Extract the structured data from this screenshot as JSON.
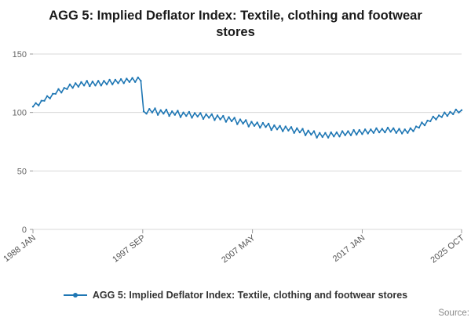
{
  "title": "AGG 5: Implied Deflator Index: Textile, clothing and footwear stores",
  "legend": {
    "label": "AGG 5: Implied Deflator Index: Textile, clothing and footwear stores"
  },
  "source_label": "Source:",
  "colors": {
    "line": "#1f77b4",
    "grid": "#d9d9d9",
    "tick": "#999999",
    "axis_text": "#555555",
    "y_text": "#666666"
  },
  "chart_data": {
    "type": "line",
    "title": "AGG 5: Implied Deflator Index: Textile, clothing and footwear stores",
    "xlabel": "",
    "ylabel": "",
    "ylim": [
      0,
      150
    ],
    "xlim": [
      1988.0,
      2025.75
    ],
    "grid": true,
    "legend_position": "bottom",
    "x_start_year": 1988,
    "x_step_years": 0.25,
    "y_ticks": [
      0,
      50,
      100,
      150
    ],
    "x_ticks": [
      {
        "label": "1988 JAN",
        "year": 1988.0
      },
      {
        "label": "1997 SEP",
        "year": 1997.667
      },
      {
        "label": "2007 MAY",
        "year": 2007.333
      },
      {
        "label": "2017 JAN",
        "year": 2017.0
      },
      {
        "label": "2025 OCT",
        "year": 2025.75
      }
    ],
    "series": [
      {
        "name": "AGG 5: Implied Deflator Index: Textile, clothing and footwear stores",
        "values": [
          105,
          108,
          106,
          110,
          110,
          114,
          112,
          116,
          116,
          120,
          117,
          121,
          120,
          124,
          121,
          125,
          122,
          126,
          123,
          127,
          122.5,
          126.5,
          123,
          127,
          123,
          127,
          124,
          128,
          124,
          128,
          125,
          128.5,
          125,
          129,
          126,
          129.5,
          126,
          130,
          127,
          101,
          99,
          103,
          100,
          103.5,
          98,
          102,
          99,
          102.5,
          97,
          101,
          98,
          101.5,
          96,
          100,
          97,
          100.5,
          95.5,
          99.5,
          96.5,
          99.5,
          94.5,
          98.5,
          95.5,
          98.5,
          93.5,
          97.5,
          94,
          97,
          92,
          96,
          92.5,
          95.5,
          90,
          94,
          90.5,
          93.5,
          88,
          92,
          88.5,
          91.5,
          87,
          91,
          87.5,
          90.5,
          85,
          89,
          85.5,
          88.5,
          84,
          88,
          84.5,
          87.5,
          82.5,
          86.5,
          83,
          86,
          80.5,
          84.5,
          81,
          84,
          78.5,
          82.5,
          79,
          82.5,
          78.5,
          83,
          79.5,
          83,
          79.5,
          84,
          80.5,
          84,
          80.5,
          85,
          81,
          85,
          81.5,
          85.5,
          82,
          85.5,
          82.5,
          86.5,
          83,
          86,
          83,
          87,
          83.5,
          86.5,
          82.5,
          86,
          82,
          85.5,
          82.5,
          86.5,
          84,
          88,
          87,
          91.5,
          89,
          93,
          92.5,
          96.5,
          94,
          97.5,
          96,
          100,
          97,
          100.5,
          98.5,
          102.5,
          100,
          102
        ]
      }
    ]
  }
}
